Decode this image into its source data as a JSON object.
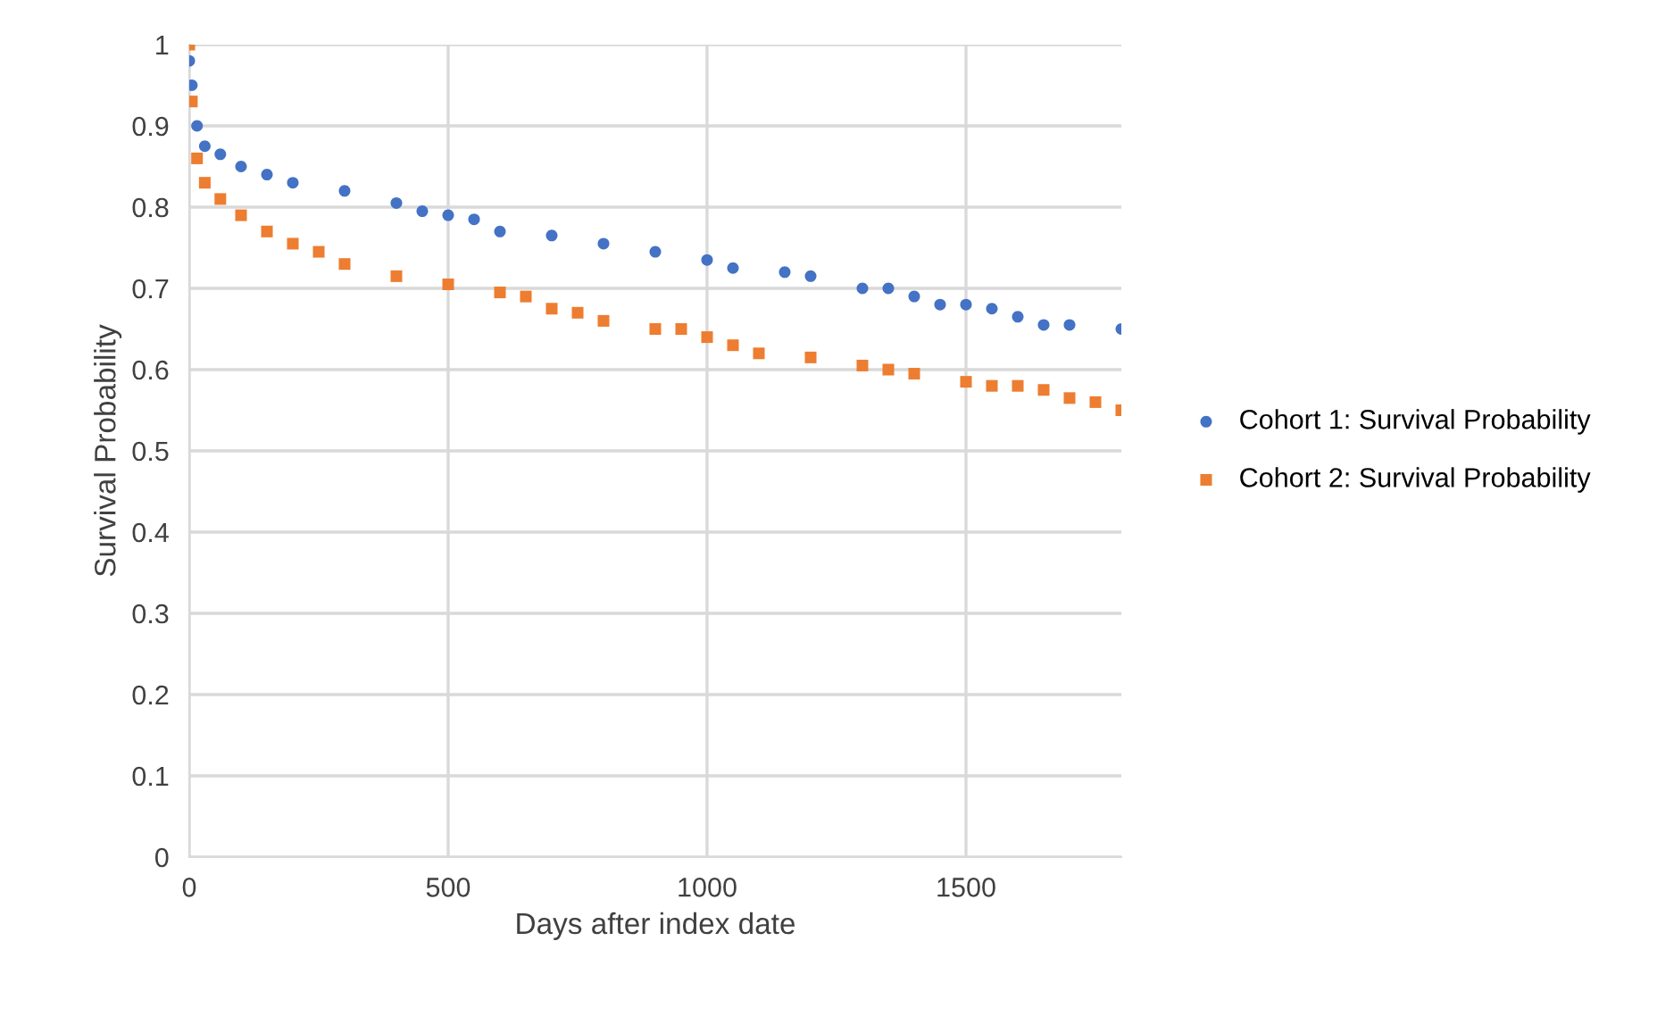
{
  "chart_data": {
    "type": "scatter",
    "xlabel": "Days after index date",
    "ylabel": "Survival Probability",
    "xlim": [
      0,
      1800
    ],
    "xticks": [
      0,
      500,
      1000,
      1500
    ],
    "ylim": [
      0,
      1
    ],
    "yticks": [
      0,
      0.1,
      0.2,
      0.3,
      0.4,
      0.5,
      0.6,
      0.7,
      0.8,
      0.9,
      1
    ],
    "grid": true,
    "legend": "right",
    "series": [
      {
        "name": "Cohort 1: Survival Probability",
        "color": "#4472c4",
        "marker": "circle",
        "x": [
          0,
          5,
          15,
          30,
          60,
          100,
          150,
          200,
          300,
          400,
          450,
          500,
          550,
          600,
          700,
          800,
          900,
          1000,
          1050,
          1150,
          1200,
          1300,
          1350,
          1400,
          1450,
          1500,
          1550,
          1600,
          1650,
          1700,
          1800
        ],
        "values": [
          0.98,
          0.95,
          0.9,
          0.875,
          0.865,
          0.85,
          0.84,
          0.83,
          0.82,
          0.805,
          0.795,
          0.79,
          0.785,
          0.77,
          0.765,
          0.755,
          0.745,
          0.735,
          0.725,
          0.72,
          0.715,
          0.7,
          0.7,
          0.69,
          0.68,
          0.68,
          0.675,
          0.665,
          0.655,
          0.655,
          0.65
        ]
      },
      {
        "name": "Cohort 2: Survival Probability",
        "color": "#ed7d31",
        "marker": "square",
        "x": [
          0,
          5,
          15,
          30,
          60,
          100,
          150,
          200,
          250,
          300,
          400,
          500,
          600,
          650,
          700,
          750,
          800,
          900,
          950,
          1000,
          1050,
          1100,
          1200,
          1300,
          1350,
          1400,
          1500,
          1550,
          1600,
          1650,
          1700,
          1750,
          1800
        ],
        "values": [
          1.0,
          0.93,
          0.86,
          0.83,
          0.81,
          0.79,
          0.77,
          0.755,
          0.745,
          0.73,
          0.715,
          0.705,
          0.695,
          0.69,
          0.675,
          0.67,
          0.66,
          0.65,
          0.65,
          0.64,
          0.63,
          0.62,
          0.615,
          0.605,
          0.6,
          0.595,
          0.585,
          0.58,
          0.58,
          0.575,
          0.565,
          0.56,
          0.55
        ]
      }
    ]
  }
}
